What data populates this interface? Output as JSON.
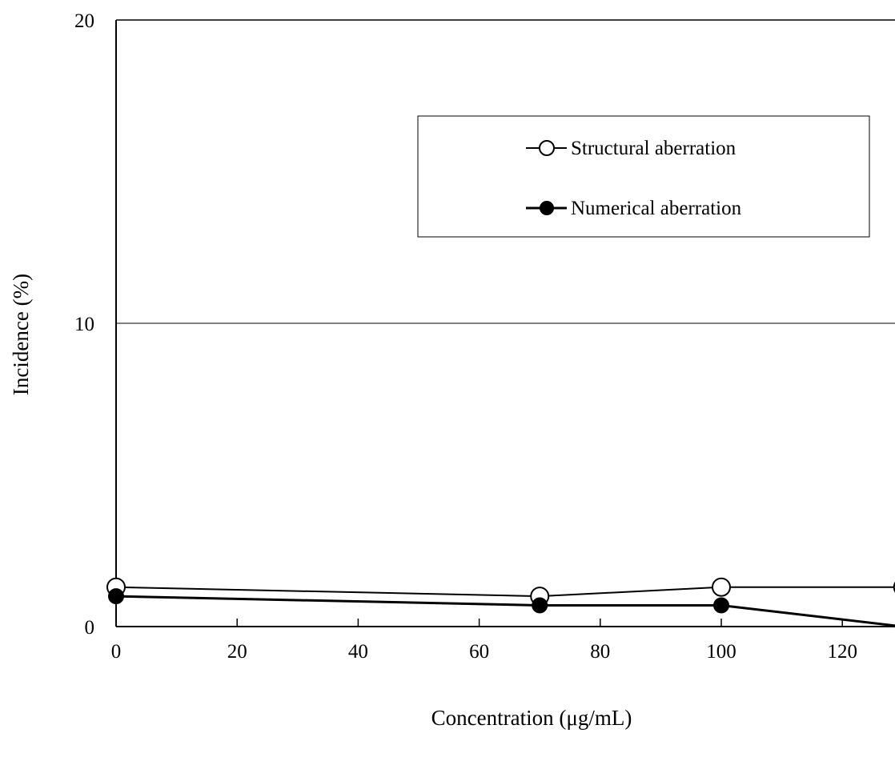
{
  "chart_data": {
    "type": "line",
    "xlabel": "Concentration (μg/mL)",
    "ylabel": "Incidence (%)",
    "xlim": [
      0,
      130
    ],
    "ylim": [
      0,
      20
    ],
    "x_ticks": [
      0,
      20,
      40,
      60,
      80,
      100,
      120
    ],
    "y_ticks": [
      0,
      10,
      20
    ],
    "x_tick_labels": [
      "0",
      "20",
      "40",
      "60",
      "80",
      "100",
      "120"
    ],
    "y_tick_labels": [
      "0",
      "10",
      "20"
    ],
    "grid": "horizontal at 10",
    "legend_position": "upper-right",
    "series": [
      {
        "name": "Structural aberration",
        "marker": "open-circle",
        "x": [
          0,
          70,
          100,
          130
        ],
        "y": [
          1.3,
          1.0,
          1.3,
          1.3
        ]
      },
      {
        "name": "Numerical aberration",
        "marker": "filled-circle",
        "x": [
          0,
          70,
          100,
          130
        ],
        "y": [
          1.0,
          0.7,
          0.7,
          0.0
        ]
      }
    ]
  },
  "colors": {
    "line": "#000000",
    "background": "#ffffff",
    "open_marker_fill": "#ffffff",
    "filled_marker_fill": "#000000"
  }
}
